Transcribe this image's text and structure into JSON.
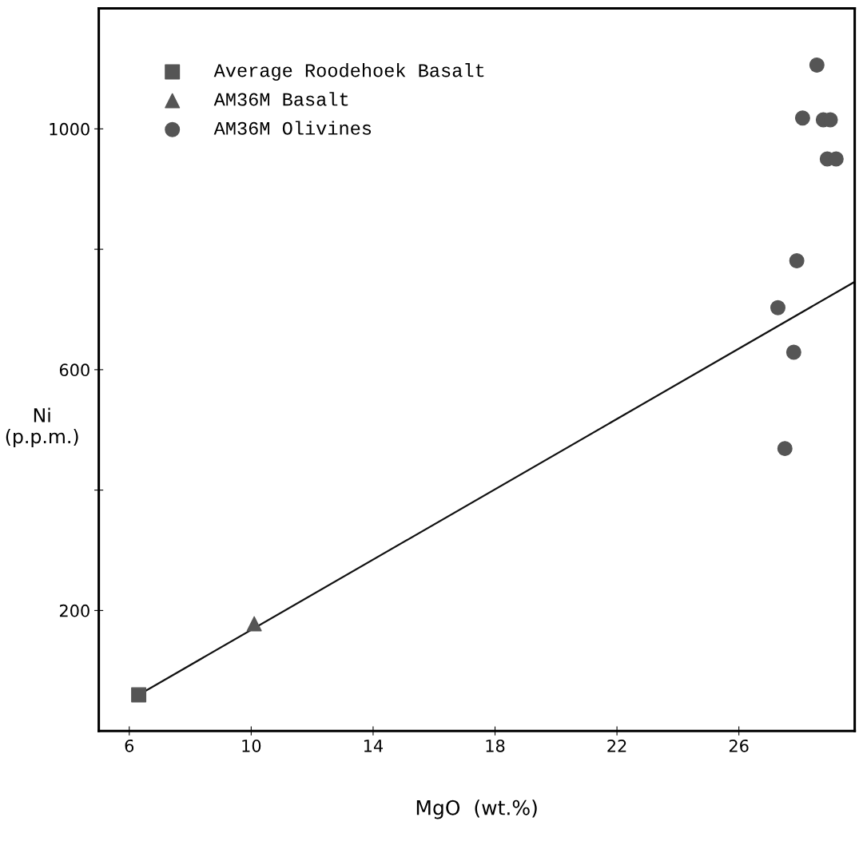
{
  "chart_data": {
    "type": "scatter",
    "xlabel": "MgO  (wt.%)",
    "ylabel": "Ni\n(p.p.m.)",
    "xlim": [
      5,
      29.8
    ],
    "ylim": [
      0,
      1200
    ],
    "xticks": [
      6,
      10,
      14,
      18,
      22,
      26
    ],
    "yticks": [
      {
        "value": 200,
        "label": "200"
      },
      {
        "value": 400,
        "label": null
      },
      {
        "value": 600,
        "label": "600"
      },
      {
        "value": 800,
        "label": null
      },
      {
        "value": 1000,
        "label": "1000"
      }
    ],
    "grid": false,
    "legend": "top left",
    "series": [
      {
        "name": "Average Roodehoek Basalt",
        "color": "#555555",
        "marker": "square",
        "x": [
          6.31
        ],
        "values": [
          60
        ]
      },
      {
        "name": "AM36M Basalt",
        "color": "#555555",
        "marker": "triangle",
        "x": [
          10.1
        ],
        "values": [
          178
        ]
      },
      {
        "name": "AM36M Olivines",
        "color": "#555555",
        "marker": "circle",
        "x": [
          28.56,
          28.09,
          28.77,
          29.0,
          28.9,
          29.19,
          27.9,
          27.28,
          27.8,
          27.51
        ],
        "values": [
          1106,
          1018,
          1015,
          1015,
          950,
          950,
          781,
          703,
          629,
          469
        ]
      },
      {
        "type": "line",
        "color": "#111111",
        "marker": "none",
        "line_style": "solid",
        "x": [
          6.31,
          29.8
        ],
        "values": [
          60,
          746
        ]
      }
    ]
  }
}
